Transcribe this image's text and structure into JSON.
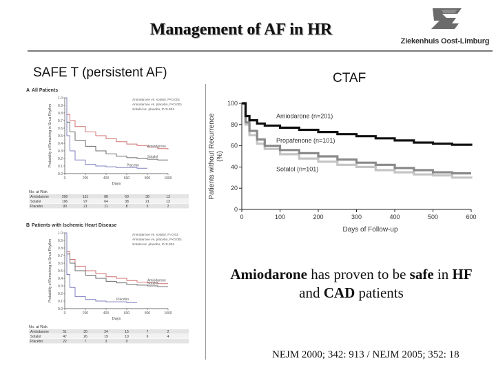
{
  "slide": {
    "title": "Management of AF in HR",
    "left_heading": "SAFE T (persistent AF)",
    "right_heading": "CTAF",
    "statement": {
      "part1_bold": "Amiodarone",
      "part2": " has proven to be ",
      "part3_bold": "safe",
      "part4": " in ",
      "part5_bold": "HF",
      "part6": " and ",
      "part7_bold": "CAD",
      "part8": " patients"
    },
    "references": "NEJM 2000; 342: 913 / NEJM 2005; 352: 18",
    "logo": {
      "name": "Ziekenhuis Oost-Limburg",
      "color": "#6b6b6b"
    }
  },
  "chart_data": [
    {
      "type": "line",
      "panel": "A",
      "title": "All Patients",
      "ylabel": "Probability of Remaining in Sinus Rhythm",
      "xlabel": "Days",
      "xlim": [
        0,
        1000
      ],
      "ylim": [
        0,
        1.0
      ],
      "xticks": [
        0,
        200,
        400,
        600,
        800,
        1000
      ],
      "yticks": [
        "0.0",
        "0.1",
        "0.2",
        "0.3",
        "0.4",
        "0.5",
        "0.6",
        "0.7",
        "0.8",
        "0.9",
        "1.0"
      ],
      "annotations": [
        "Amiodarone vs. sotalol, P<0.001",
        "Amiodarone vs. placebo, P<0.001",
        "Sotalol vs. placebo, P<0.001"
      ],
      "series": [
        {
          "name": "Amiodarone",
          "color": "#d07070",
          "x": [
            0,
            20,
            50,
            100,
            200,
            300,
            400,
            500,
            600,
            700,
            800,
            900,
            1000
          ],
          "y": [
            1.0,
            0.78,
            0.7,
            0.62,
            0.55,
            0.5,
            0.46,
            0.42,
            0.39,
            0.37,
            0.35,
            0.33,
            0.32
          ]
        },
        {
          "name": "Sotalol",
          "color": "#6a6a6a",
          "x": [
            0,
            20,
            50,
            100,
            200,
            300,
            400,
            500,
            600,
            700,
            800,
            900,
            1000
          ],
          "y": [
            1.0,
            0.68,
            0.55,
            0.44,
            0.36,
            0.3,
            0.26,
            0.23,
            0.21,
            0.2,
            0.19,
            0.18,
            0.18
          ]
        },
        {
          "name": "Placebo",
          "color": "#8080c0",
          "x": [
            0,
            20,
            50,
            100,
            200,
            300,
            400,
            500,
            600,
            700,
            800
          ],
          "y": [
            1.0,
            0.5,
            0.3,
            0.18,
            0.12,
            0.1,
            0.09,
            0.08,
            0.08,
            0.07,
            0.07
          ]
        }
      ],
      "at_risk": {
        "label": "No. at Risk",
        "rows": [
          {
            "name": "Amiodarone",
            "values": [
              "206",
              "131",
              "88",
              "60",
              "38",
              "13"
            ]
          },
          {
            "name": "Sotalol",
            "values": [
              "196",
              "97",
              "64",
              "38",
              "21",
              "13"
            ]
          },
          {
            "name": "Placebo",
            "values": [
              "90",
              "21",
              "11",
              "8",
              "5",
              "2"
            ]
          }
        ]
      }
    },
    {
      "type": "line",
      "panel": "B",
      "title": "Patients with Ischemic Heart Disease",
      "ylabel": "Probability of Remaining in Sinus Rhythm",
      "xlabel": "Days",
      "xlim": [
        0,
        1000
      ],
      "ylim": [
        0,
        1.0
      ],
      "xticks": [
        0,
        200,
        400,
        600,
        800,
        1000
      ],
      "yticks": [
        "0.0",
        "0.1",
        "0.2",
        "0.3",
        "0.4",
        "0.5",
        "0.6",
        "0.7",
        "0.8",
        "0.9",
        "1.0"
      ],
      "annotations": [
        "Amiodarone vs. sotalol, P=0.53",
        "Amiodarone vs. placebo, P<0.001",
        "Sotalol vs. placebo, P<0.001"
      ],
      "series": [
        {
          "name": "Amiodarone",
          "color": "#d07070",
          "x": [
            0,
            20,
            50,
            100,
            200,
            300,
            400,
            500,
            600,
            700,
            800,
            900,
            1000
          ],
          "y": [
            1.0,
            0.75,
            0.65,
            0.56,
            0.5,
            0.46,
            0.42,
            0.4,
            0.37,
            0.35,
            0.34,
            0.33,
            0.33
          ]
        },
        {
          "name": "Sotalol",
          "color": "#6a6a6a",
          "x": [
            0,
            20,
            50,
            100,
            200,
            300,
            400,
            500,
            600,
            700,
            800,
            900,
            1000
          ],
          "y": [
            1.0,
            0.72,
            0.6,
            0.5,
            0.44,
            0.4,
            0.36,
            0.34,
            0.32,
            0.31,
            0.3,
            0.29,
            0.29
          ]
        },
        {
          "name": "Placebo",
          "color": "#8080c0",
          "x": [
            0,
            20,
            50,
            100,
            200,
            300,
            400,
            500,
            600,
            700
          ],
          "y": [
            1.0,
            0.45,
            0.28,
            0.16,
            0.12,
            0.1,
            0.09,
            0.09,
            0.08,
            0.08
          ]
        }
      ],
      "at_risk": {
        "label": "No. at Risk",
        "rows": [
          {
            "name": "Amiodarone",
            "values": [
              "51",
              "30",
              "24",
              "15",
              "7",
              "2"
            ]
          },
          {
            "name": "Sotalol",
            "values": [
              "47",
              "26",
              "19",
              "10",
              "6",
              "4"
            ]
          },
          {
            "name": "Placebo",
            "values": [
              "22",
              "7",
              "3",
              "0",
              "",
              ""
            ]
          }
        ]
      }
    },
    {
      "type": "line",
      "title": "",
      "ylabel": "Patients without Recurrence (%)",
      "xlabel": "Days of Follow-up",
      "xlim": [
        0,
        600
      ],
      "ylim": [
        0,
        100
      ],
      "xticks": [
        0,
        100,
        200,
        300,
        400,
        500,
        600
      ],
      "yticks": [
        0,
        20,
        40,
        60,
        80,
        100
      ],
      "series": [
        {
          "name": "Amiodarone (n=201)",
          "color": "#111111",
          "x": [
            0,
            10,
            20,
            40,
            60,
            100,
            150,
            200,
            250,
            300,
            350,
            400,
            450,
            500,
            550,
            600
          ],
          "y": [
            100,
            88,
            84,
            81,
            79,
            77,
            75,
            73,
            71,
            69,
            67,
            65,
            63,
            62,
            61,
            60
          ]
        },
        {
          "name": "Propafenone (n=101)",
          "color": "#8a8a8a",
          "x": [
            0,
            10,
            20,
            40,
            60,
            100,
            150,
            200,
            250,
            300,
            350,
            400,
            450,
            500,
            550,
            600
          ],
          "y": [
            100,
            82,
            74,
            66,
            60,
            56,
            53,
            50,
            47,
            44,
            42,
            39,
            37,
            35,
            34,
            34
          ]
        },
        {
          "name": "Sotalol (n=101)",
          "color": "#c4c4c4",
          "x": [
            0,
            10,
            20,
            40,
            60,
            100,
            150,
            200,
            250,
            300,
            350,
            400,
            450,
            500,
            550,
            600
          ],
          "y": [
            100,
            80,
            70,
            62,
            57,
            52,
            48,
            45,
            42,
            40,
            37,
            35,
            33,
            32,
            30,
            29
          ]
        }
      ]
    }
  ]
}
